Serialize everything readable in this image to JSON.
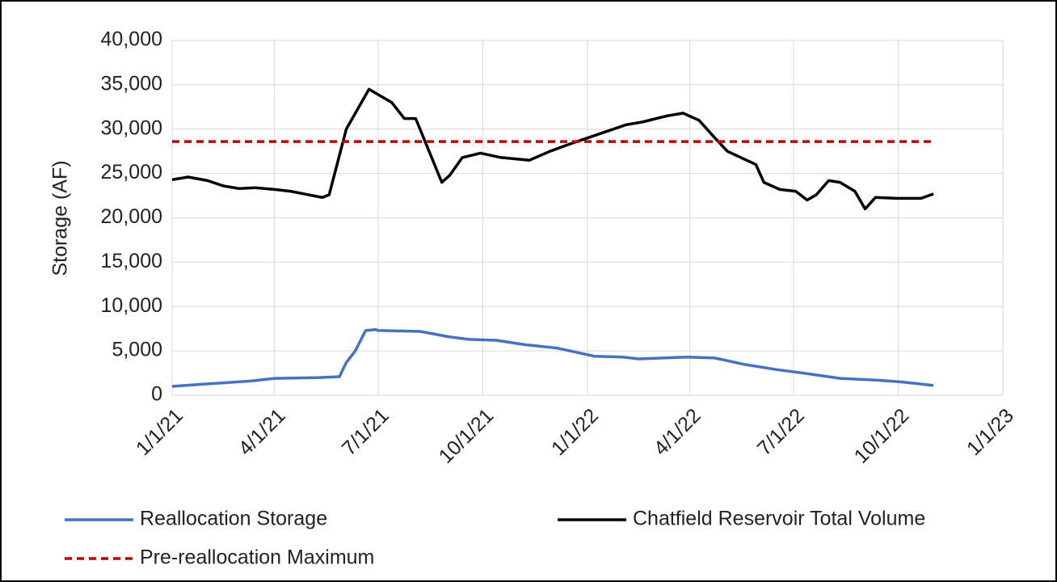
{
  "chart_data": {
    "type": "line",
    "y_label": "Storage (AF)",
    "xlim": [
      "2021-01-01",
      "2023-01-01"
    ],
    "xticks": [
      {
        "value": "2021-01-01",
        "label": "1/1/21"
      },
      {
        "value": "2021-04-01",
        "label": "4/1/21"
      },
      {
        "value": "2021-07-01",
        "label": "7/1/21"
      },
      {
        "value": "2021-10-01",
        "label": "10/1/21"
      },
      {
        "value": "2022-01-01",
        "label": "1/1/22"
      },
      {
        "value": "2022-04-01",
        "label": "4/1/22"
      },
      {
        "value": "2022-07-01",
        "label": "7/1/22"
      },
      {
        "value": "2022-10-01",
        "label": "10/1/22"
      },
      {
        "value": "2023-01-01",
        "label": "1/1/23"
      }
    ],
    "ylim": [
      0,
      40000
    ],
    "yticks": [
      0,
      {
        "value": 5000,
        "label": "5,000"
      },
      {
        "value": 10000,
        "label": "10,000"
      },
      {
        "value": 15000,
        "label": "15,000"
      },
      {
        "value": 20000,
        "label": "20,000"
      },
      {
        "value": 25000,
        "label": "25,000"
      },
      {
        "value": 30000,
        "label": "30,000"
      },
      {
        "value": 35000,
        "label": "35,000"
      },
      {
        "value": 40000,
        "label": "40,000"
      }
    ],
    "grid": true,
    "legend": "bottom",
    "series": [
      {
        "name": "Reallocation Storage",
        "color": "#4472c4",
        "dash": false,
        "x": [
          "2021-01-01",
          "2021-02-03",
          "2021-03-11",
          "2021-04-01",
          "2021-05-10",
          "2021-05-28",
          "2021-06-03",
          "2021-06-11",
          "2021-06-20",
          "2021-06-29",
          "2021-07-01",
          "2021-08-07",
          "2021-09-01",
          "2021-09-19",
          "2021-10-13",
          "2021-11-07",
          "2021-12-06",
          "2022-01-07",
          "2022-02-01",
          "2022-02-15",
          "2022-03-29",
          "2022-04-23",
          "2022-05-18",
          "2022-06-16",
          "2022-07-10",
          "2022-08-11",
          "2022-09-12",
          "2022-10-04",
          "2022-11-01"
        ],
        "values": [
          1000,
          1300,
          1600,
          1900,
          2000,
          2100,
          3700,
          5000,
          7300,
          7400,
          7300,
          7200,
          6600,
          6300,
          6200,
          5700,
          5300,
          4400,
          4300,
          4100,
          4300,
          4200,
          3500,
          2900,
          2500,
          1900,
          1700,
          1500,
          1100
        ]
      },
      {
        "name": "Chatfield Reservoir Total Volume",
        "color": "#000000",
        "dash": false,
        "x": [
          "2021-01-01",
          "2021-01-15",
          "2021-02-01",
          "2021-02-15",
          "2021-03-01",
          "2021-03-15",
          "2021-04-01",
          "2021-04-15",
          "2021-05-13",
          "2021-05-19",
          "2021-06-03",
          "2021-06-23",
          "2021-07-13",
          "2021-07-24",
          "2021-08-03",
          "2021-08-26",
          "2021-09-02",
          "2021-09-13",
          "2021-09-29",
          "2021-10-17",
          "2021-11-11",
          "2021-11-29",
          "2021-12-16",
          "2022-01-01",
          "2022-02-04",
          "2022-02-18",
          "2022-03-12",
          "2022-03-26",
          "2022-04-09",
          "2022-04-23",
          "2022-05-04",
          "2022-05-29",
          "2022-06-05",
          "2022-06-19",
          "2022-07-03",
          "2022-07-13",
          "2022-07-21",
          "2022-08-01",
          "2022-08-11",
          "2022-08-24",
          "2022-09-02",
          "2022-09-11",
          "2022-09-30",
          "2022-10-21",
          "2022-11-01"
        ],
        "values": [
          24300,
          24600,
          24200,
          23600,
          23300,
          23400,
          23200,
          23000,
          22300,
          22600,
          30000,
          34500,
          33000,
          31200,
          31200,
          24000,
          24800,
          26800,
          27300,
          26800,
          26500,
          27500,
          28300,
          29000,
          30500,
          30800,
          31500,
          31800,
          31000,
          29000,
          27500,
          26000,
          24000,
          23200,
          23000,
          22000,
          22600,
          24200,
          24000,
          23000,
          21000,
          22300,
          22200,
          22200,
          22700
        ]
      },
      {
        "name": "Pre-reallocation Maximum",
        "color": "#c00000",
        "dash": true,
        "x": [
          "2021-01-01",
          "2022-11-01"
        ],
        "values": [
          28600,
          28600
        ]
      }
    ]
  }
}
